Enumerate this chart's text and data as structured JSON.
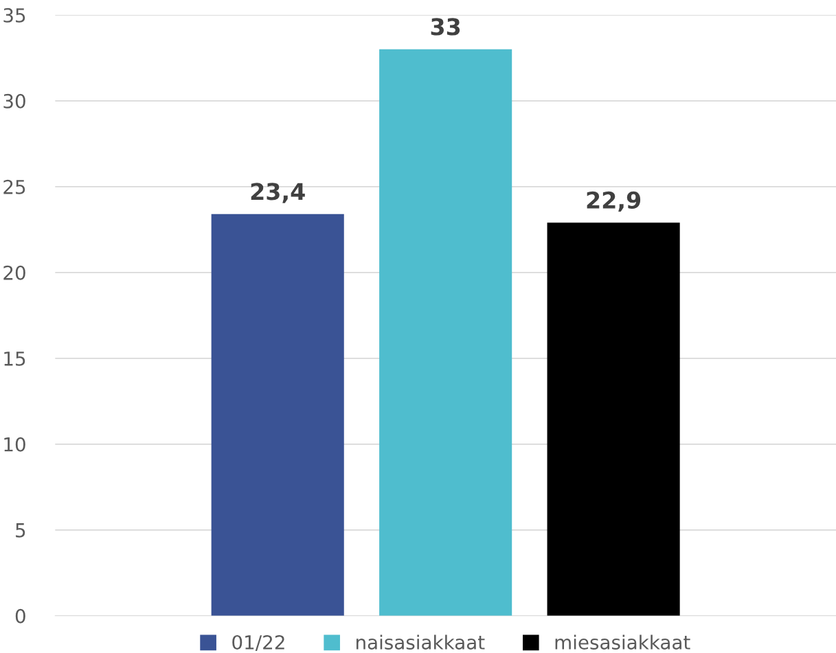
{
  "chart_data": {
    "type": "bar",
    "categories": [
      null
    ],
    "series": [
      {
        "name": "01/22",
        "color": "#3a5395",
        "values": [
          23.4
        ],
        "value_labels": [
          "23,4"
        ]
      },
      {
        "name": "naisasiakkaat",
        "color": "#4fbdce",
        "values": [
          33
        ],
        "value_labels": [
          "33"
        ]
      },
      {
        "name": "miesasiakkaat",
        "color": "#000000",
        "values": [
          22.9
        ],
        "value_labels": [
          "22,9"
        ]
      }
    ],
    "ylim": [
      0,
      35
    ],
    "yticks": [
      0,
      5,
      10,
      15,
      20,
      25,
      30,
      35
    ],
    "grid": "y",
    "legend": "bottom"
  }
}
